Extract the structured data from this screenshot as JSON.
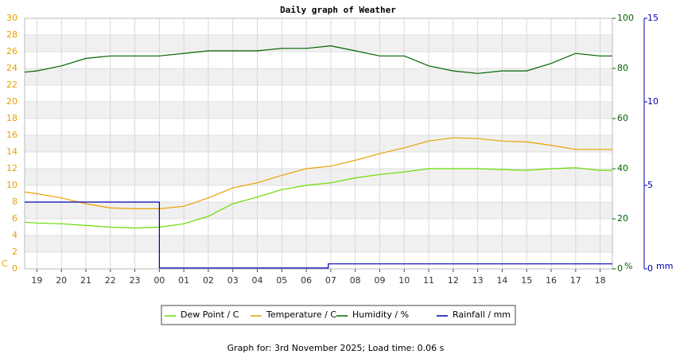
{
  "chart_data": {
    "type": "line",
    "title": "Daily graph of Weather",
    "caption": "Graph for: 3rd November 2025; Load time: 0.06 s",
    "y_label": "C",
    "y2_label": "%",
    "y3_label": "mm",
    "y_color": "#e8a000",
    "y2_color": "#006400",
    "y3_color": "#0000b0",
    "grid": true,
    "xlim": [
      18.5,
      42.5
    ],
    "xticks": [
      {
        "value": 19,
        "label": "19"
      },
      {
        "value": 20,
        "label": "20"
      },
      {
        "value": 21,
        "label": "21"
      },
      {
        "value": 22,
        "label": "22"
      },
      {
        "value": 23,
        "label": "23"
      },
      {
        "value": 24,
        "label": "00"
      },
      {
        "value": 25,
        "label": "01"
      },
      {
        "value": 26,
        "label": "02"
      },
      {
        "value": 27,
        "label": "03"
      },
      {
        "value": 28,
        "label": "04"
      },
      {
        "value": 29,
        "label": "05"
      },
      {
        "value": 30,
        "label": "06"
      },
      {
        "value": 31,
        "label": "07"
      },
      {
        "value": 32,
        "label": "08"
      },
      {
        "value": 33,
        "label": "09"
      },
      {
        "value": 34,
        "label": "10"
      },
      {
        "value": 35,
        "label": "11"
      },
      {
        "value": 36,
        "label": "12"
      },
      {
        "value": 37,
        "label": "13"
      },
      {
        "value": 38,
        "label": "14"
      },
      {
        "value": 39,
        "label": "15"
      },
      {
        "value": 40,
        "label": "16"
      },
      {
        "value": 41,
        "label": "17"
      },
      {
        "value": 42,
        "label": "18"
      }
    ],
    "ylim": [
      0,
      30
    ],
    "yticks": [
      0,
      2,
      4,
      6,
      8,
      10,
      12,
      14,
      16,
      18,
      20,
      22,
      24,
      26,
      28,
      30
    ],
    "y2lim": [
      0,
      100
    ],
    "y2ticks": [
      0,
      20,
      40,
      60,
      80,
      100
    ],
    "y3lim": [
      0,
      15
    ],
    "y3ticks": [
      0,
      5,
      10,
      15
    ],
    "x": [
      18.5,
      19,
      20,
      21,
      22,
      23,
      24,
      25,
      26,
      27,
      28,
      29,
      30,
      31,
      32,
      33,
      34,
      35,
      36,
      37,
      38,
      39,
      40,
      41,
      42,
      42.5
    ],
    "series": [
      {
        "name": "Dew Point / C",
        "color": "#66dd00",
        "values": [
          5.6,
          5.5,
          5.4,
          5.2,
          5.0,
          4.9,
          5.0,
          5.4,
          6.3,
          7.8,
          8.6,
          9.5,
          10.0,
          10.3,
          10.9,
          11.3,
          11.6,
          12.0,
          12.0,
          12.0,
          11.9,
          11.8,
          12.0,
          12.1,
          11.8,
          11.8
        ]
      },
      {
        "name": "Temperature / C",
        "color": "#e8a000",
        "values": [
          9.2,
          9.0,
          8.5,
          7.8,
          7.3,
          7.2,
          7.2,
          7.5,
          8.5,
          9.7,
          10.3,
          11.2,
          12.0,
          12.3,
          13.0,
          13.8,
          14.5,
          15.3,
          15.7,
          15.6,
          15.3,
          15.2,
          14.8,
          14.3,
          14.3,
          14.3
        ]
      },
      {
        "name": "Humidity / %",
        "color": "#006400",
        "axis": "y2",
        "values": [
          78.5,
          79,
          81,
          84,
          85,
          85,
          85,
          86,
          87,
          87,
          87,
          88,
          88,
          89,
          87,
          85,
          85,
          81,
          79,
          78,
          79,
          79,
          82,
          86,
          85,
          85
        ]
      },
      {
        "name": "Rainfall / mm",
        "color": "#0000b0",
        "axis": "y3",
        "x": [
          18.5,
          24,
          24,
          30.9,
          30.9,
          42.5
        ],
        "values": [
          4.0,
          4.0,
          0.05,
          0.05,
          0.3,
          0.3
        ]
      }
    ]
  }
}
